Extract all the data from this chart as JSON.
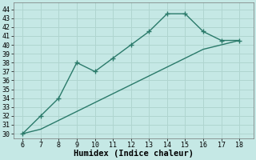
{
  "xlabel": "Humidex (Indice chaleur)",
  "bg_color": "#c5e8e5",
  "grid_color": "#b0d5d0",
  "line_color": "#2a7a6a",
  "line1_x": [
    6,
    7,
    8,
    9,
    10,
    11,
    12,
    13,
    14,
    15,
    16,
    17,
    18
  ],
  "line1_y": [
    30,
    32,
    34,
    38,
    37,
    38.5,
    40,
    41.5,
    43.5,
    43.5,
    41.5,
    40.5,
    40.5
  ],
  "line2_x": [
    6,
    7,
    8,
    9,
    10,
    11,
    12,
    13,
    14,
    15,
    16,
    17,
    18
  ],
  "line2_y": [
    30,
    30.5,
    31.5,
    32.5,
    33.5,
    34.5,
    35.5,
    36.5,
    37.5,
    38.5,
    39.5,
    40,
    40.5
  ],
  "xlim": [
    5.5,
    18.8
  ],
  "ylim": [
    29.5,
    44.8
  ],
  "xticks": [
    6,
    7,
    8,
    9,
    10,
    11,
    12,
    13,
    14,
    15,
    16,
    17,
    18
  ],
  "yticks": [
    30,
    31,
    32,
    33,
    34,
    35,
    36,
    37,
    38,
    39,
    40,
    41,
    42,
    43,
    44
  ],
  "xlabel_fontsize": 7.5,
  "tick_fontsize": 6
}
